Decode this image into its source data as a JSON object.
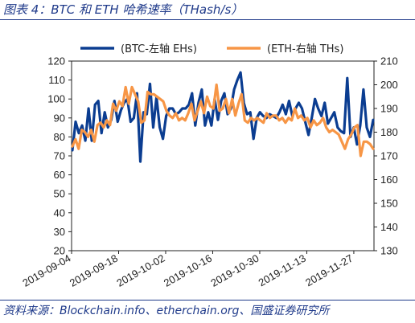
{
  "figure": {
    "title": "图表 4：BTC 和 ETH 哈希速率（THash/s）",
    "source": "资料来源：Blockchain.info、etherchain.org、国盛证券研究所"
  },
  "colors": {
    "btc": "#0b3d91",
    "eth": "#f79646"
  },
  "chart_data": {
    "type": "line",
    "x_tick_labels": [
      "2019-09-04",
      "2019-09-18",
      "2019-10-02",
      "2019-10-16",
      "2019-10-30",
      "2019-11-13",
      "2019-11-27"
    ],
    "x_range": [
      "2019-09-04",
      "2019-12-03"
    ],
    "y_left": {
      "ylim": [
        20,
        120
      ],
      "ticks": [
        20,
        30,
        40,
        50,
        60,
        70,
        80,
        90,
        100,
        110,
        120
      ]
    },
    "y_right": {
      "ylim": [
        130,
        210
      ],
      "ticks": [
        130,
        140,
        150,
        160,
        170,
        180,
        190,
        200,
        210
      ]
    },
    "legend_position": "top",
    "series": [
      {
        "name": "(BTC-左轴 EHs)",
        "axis": "left",
        "color": "#0b3d91",
        "values": [
          73,
          88,
          82,
          86,
          78,
          95,
          78,
          97,
          99,
          82,
          93,
          85,
          89,
          99,
          88,
          94,
          98,
          100,
          88,
          90,
          103,
          67,
          93,
          92,
          108,
          85,
          101,
          85,
          79,
          91,
          95,
          95,
          92,
          93,
          95,
          95,
          97,
          103,
          86,
          98,
          105,
          86,
          93,
          86,
          100,
          89,
          99,
          103,
          92,
          95,
          105,
          110,
          114,
          98,
          92,
          93,
          79,
          90,
          93,
          91,
          90,
          92,
          91,
          90,
          93,
          97,
          92,
          99,
          91,
          95,
          98,
          95,
          88,
          81,
          90,
          100,
          95,
          91,
          98,
          87,
          90,
          93,
          85,
          83,
          82,
          111,
          80,
          85,
          76,
          86,
          105,
          85,
          80,
          89
        ]
      },
      {
        "name": "(ETH-右轴 THs)",
        "axis": "right",
        "color": "#f79646",
        "values": [
          174,
          177,
          173,
          181,
          180,
          178,
          181,
          176,
          183,
          184,
          182,
          185,
          183,
          192,
          189,
          193,
          191,
          199,
          192,
          199,
          196,
          193,
          184,
          185,
          197,
          196,
          196,
          195,
          194,
          193,
          189,
          187,
          186,
          188,
          185,
          186,
          185,
          188,
          192,
          185,
          189,
          193,
          188,
          195,
          191,
          190,
          200,
          189,
          190,
          194,
          188,
          194,
          187,
          192,
          196,
          185,
          184,
          186,
          185,
          186,
          185,
          184,
          188,
          186,
          187,
          187,
          185,
          186,
          184,
          186,
          185,
          190,
          186,
          187,
          185,
          186,
          182,
          185,
          183,
          184,
          186,
          182,
          180,
          181,
          180,
          179,
          176,
          173,
          177,
          179,
          182,
          183,
          170,
          176,
          176,
          175,
          173
        ]
      }
    ]
  }
}
